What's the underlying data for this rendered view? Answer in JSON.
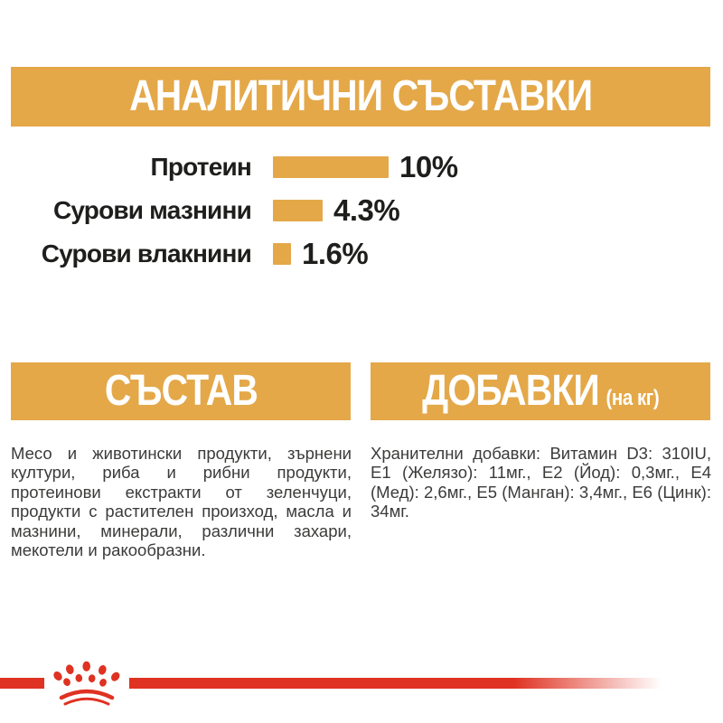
{
  "colors": {
    "accent_gold": "#E4A849",
    "brand_red": "#DF3222",
    "banner_text": "#FFFFFF",
    "chart_text": "#1E1E1C",
    "body_text": "#3B3B3A"
  },
  "analytical_section": {
    "title": "АНАЛИТИЧНИ СЪСТАВКИ"
  },
  "chart_data": {
    "type": "bar",
    "orientation": "horizontal",
    "title": "АНАЛИТИЧНИ СЪСТАВКИ",
    "categories": [
      "Протеин",
      "Сурови мазнини",
      "Сурови влакнини"
    ],
    "values": [
      10,
      4.3,
      1.6
    ],
    "value_labels": [
      "10%",
      "4.3%",
      "1.6%"
    ],
    "xlim": [
      0,
      10
    ],
    "bar_color": "#E4A849",
    "grid": false,
    "legend": false
  },
  "composition_section": {
    "title": "СЪСТАВ",
    "body": "Месо и животински продукти, зърнени култури, риба и рибни продукти, протеинови екстракти от зеленчуци, продукти с растителен произход, масла и мазнини, минерали, различни захари, мекотели и ракообразни."
  },
  "additives_section": {
    "title": "ДОБАВКИ",
    "unit_note": "(на кг)",
    "body": "Хранителни добавки: Витамин D3: 310IU, E1 (Желязо): 11мг., E2 (Йод): 0,3мг., E4 (Мед): 2,6мг., E5 (Манган): 3,4мг., E6 (Цинк): 34мг."
  },
  "footer": {
    "logo": "royal-canin-crown"
  }
}
